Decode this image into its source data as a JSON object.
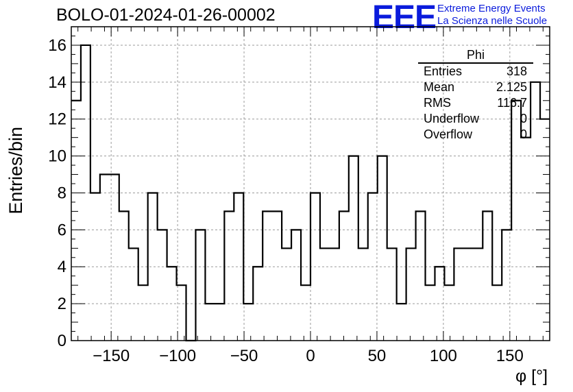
{
  "chart_data": {
    "type": "histogram",
    "title": "BOLO-01-2024-01-26-00002",
    "xlabel": "φ [°]",
    "ylabel": "Entries/bin",
    "xlim": [
      -180,
      180
    ],
    "ylim": [
      0,
      17
    ],
    "xticks": [
      -150,
      -100,
      -50,
      0,
      50,
      100,
      150
    ],
    "yticks": [
      0,
      2,
      4,
      6,
      8,
      10,
      12,
      14,
      16
    ],
    "grid": true,
    "bin_width": 7.2,
    "x_start": -180,
    "values": [
      13,
      16,
      8,
      9,
      9,
      7,
      5,
      3,
      8,
      6,
      4,
      3,
      0,
      6,
      2,
      2,
      7,
      8,
      2,
      4,
      7,
      7,
      5,
      6,
      3,
      8,
      5,
      5,
      7,
      10,
      5,
      8,
      10,
      5,
      2,
      5,
      7,
      3,
      4,
      3,
      5,
      5,
      5,
      7,
      3,
      6,
      13,
      11,
      14,
      12
    ],
    "stats": {
      "name": "Phi",
      "rows": [
        {
          "label": "Entries",
          "value": "318"
        },
        {
          "label": "Mean",
          "value": "2.125"
        },
        {
          "label": "RMS",
          "value": "116.7"
        },
        {
          "label": "Underflow",
          "value": "0"
        },
        {
          "label": "Overflow",
          "value": "0"
        }
      ]
    },
    "colors": {
      "line": "#000000",
      "grid": "#9a9a9a",
      "logo": "#0a1bdc"
    }
  },
  "logo": {
    "mark": "EEE",
    "line1": "Extreme Energy Events",
    "line2": "La Scienza nelle Scuole"
  }
}
